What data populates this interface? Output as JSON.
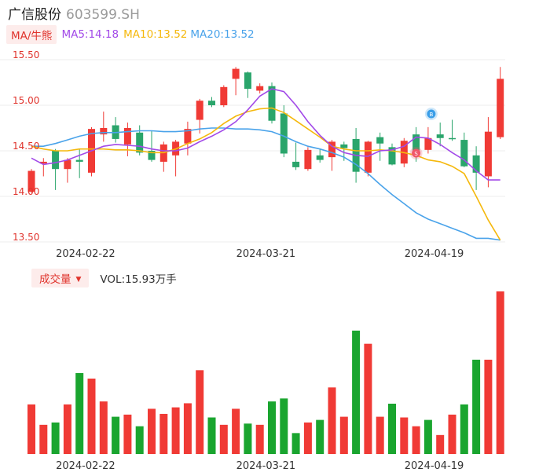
{
  "header": {
    "name": "广信股份",
    "code": "603599.SH"
  },
  "legend": {
    "indicator": "MA/牛熊",
    "ma5": "MA5:14.18",
    "ma10": "MA10:13.52",
    "ma20": "MA20:13.52"
  },
  "volume_legend": {
    "label": "成交量",
    "caret": "▼",
    "vol": "VOL:15.93万手"
  },
  "markers": [
    {
      "type": "buy",
      "text": "B",
      "index": 33
    },
    {
      "type": "sell",
      "text": "S",
      "index": 32
    }
  ],
  "colors": {
    "up": "#f03a35",
    "down": "#2aa56b",
    "vol_down": "#1aa52f",
    "ma5": "#a249e8",
    "ma10": "#f5b80c",
    "ma20": "#4aa3ea"
  },
  "chart_data": [
    {
      "type": "candlestick",
      "ylim": [
        13.5,
        15.55
      ],
      "y_ticks": [
        "15.50",
        "15.00",
        "14.50",
        "14.00",
        "13.50"
      ],
      "x_ticks": [
        {
          "index": 4,
          "label": "2024-02-22"
        },
        {
          "index": 19,
          "label": "2024-03-21"
        },
        {
          "index": 33,
          "label": "2024-04-19"
        }
      ],
      "ohlc": [
        [
          14.05,
          14.28,
          14.04,
          14.3
        ],
        [
          14.36,
          14.38,
          14.22,
          14.42
        ],
        [
          14.5,
          14.3,
          14.07,
          14.52
        ],
        [
          14.3,
          14.4,
          14.15,
          14.42
        ],
        [
          14.4,
          14.38,
          14.2,
          14.52
        ],
        [
          14.26,
          14.74,
          14.22,
          14.76
        ],
        [
          14.68,
          14.75,
          14.6,
          14.93
        ],
        [
          14.78,
          14.63,
          14.59,
          14.87
        ],
        [
          14.57,
          14.75,
          14.44,
          14.81
        ],
        [
          14.7,
          14.48,
          14.45,
          14.78
        ],
        [
          14.5,
          14.4,
          14.38,
          14.72
        ],
        [
          14.38,
          14.57,
          14.27,
          14.6
        ],
        [
          14.45,
          14.6,
          14.22,
          14.62
        ],
        [
          14.58,
          14.74,
          14.45,
          14.82
        ],
        [
          14.84,
          15.05,
          14.69,
          15.07
        ],
        [
          15.05,
          15.0,
          14.98,
          15.09
        ],
        [
          15.0,
          15.2,
          14.98,
          15.22
        ],
        [
          15.29,
          15.4,
          15.11,
          15.42
        ],
        [
          15.36,
          15.18,
          15.08,
          15.37
        ],
        [
          15.16,
          15.21,
          15.13,
          15.24
        ],
        [
          15.21,
          14.83,
          14.8,
          15.25
        ],
        [
          14.91,
          14.47,
          14.43,
          15.0
        ],
        [
          14.38,
          14.32,
          14.29,
          14.59
        ],
        [
          14.3,
          14.51,
          14.28,
          14.54
        ],
        [
          14.45,
          14.4,
          14.37,
          14.52
        ],
        [
          14.43,
          14.6,
          14.28,
          14.62
        ],
        [
          14.57,
          14.53,
          14.39,
          14.6
        ],
        [
          14.63,
          14.27,
          14.15,
          14.75
        ],
        [
          14.26,
          14.6,
          14.22,
          14.61
        ],
        [
          14.65,
          14.58,
          14.39,
          14.7
        ],
        [
          14.54,
          14.35,
          14.34,
          14.58
        ],
        [
          14.36,
          14.61,
          14.32,
          14.64
        ],
        [
          14.68,
          14.48,
          14.38,
          14.76
        ],
        [
          14.51,
          14.64,
          14.47,
          14.76
        ],
        [
          14.68,
          14.64,
          14.55,
          14.81
        ],
        [
          14.64,
          14.63,
          14.61,
          14.84
        ],
        [
          14.62,
          14.33,
          14.32,
          14.7
        ],
        [
          14.45,
          14.26,
          14.07,
          14.55
        ],
        [
          14.22,
          14.71,
          14.1,
          14.87
        ],
        [
          14.65,
          15.29,
          14.63,
          15.42
        ]
      ],
      "ma5": [
        14.42,
        14.35,
        14.37,
        14.4,
        14.45,
        14.5,
        14.55,
        14.57,
        14.56,
        14.55,
        14.52,
        14.5,
        14.5,
        14.53,
        14.6,
        14.66,
        14.73,
        14.82,
        14.95,
        15.1,
        15.18,
        15.15,
        15.0,
        14.82,
        14.67,
        14.55,
        14.48,
        14.45,
        14.44,
        14.5,
        14.51,
        14.55,
        14.65,
        14.64,
        14.57,
        14.48,
        14.4,
        14.28,
        14.18,
        14.18
      ],
      "ma10": [
        14.55,
        14.52,
        14.5,
        14.5,
        14.52,
        14.52,
        14.52,
        14.51,
        14.51,
        14.5,
        14.48,
        14.48,
        14.52,
        14.58,
        14.63,
        14.7,
        14.8,
        14.88,
        14.93,
        14.96,
        14.97,
        14.92,
        14.83,
        14.74,
        14.65,
        14.55,
        14.52,
        14.5,
        14.5,
        14.51,
        14.5,
        14.48,
        14.45,
        14.4,
        14.38,
        14.33,
        14.25,
        14.0,
        13.74,
        13.52
      ],
      "ma20": [
        14.55,
        14.55,
        14.58,
        14.62,
        14.66,
        14.69,
        14.7,
        14.7,
        14.71,
        14.72,
        14.72,
        14.71,
        14.71,
        14.72,
        14.74,
        14.75,
        14.75,
        14.74,
        14.74,
        14.73,
        14.71,
        14.66,
        14.6,
        14.55,
        14.52,
        14.48,
        14.43,
        14.35,
        14.25,
        14.13,
        14.02,
        13.92,
        13.82,
        13.75,
        13.7,
        13.65,
        13.6,
        13.54,
        13.54,
        13.52
      ]
    },
    {
      "type": "bar",
      "name": "成交量",
      "unit": "万手",
      "ylim": [
        0,
        15.93
      ],
      "values": [
        4.86,
        2.86,
        3.09,
        4.86,
        7.93,
        7.39,
        5.15,
        3.65,
        3.86,
        2.72,
        4.43,
        3.93,
        4.57,
        4.97,
        8.21,
        3.58,
        2.86,
        4.43,
        2.98,
        2.86,
        5.15,
        5.44,
        2.05,
        3.09,
        3.34,
        6.52,
        3.65,
        12.09,
        10.8,
        3.65,
        4.93,
        3.58,
        2.72,
        3.34,
        1.86,
        3.86,
        4.86,
        9.24,
        9.24,
        15.93
      ],
      "up": [
        true,
        true,
        false,
        true,
        false,
        true,
        true,
        false,
        true,
        false,
        true,
        true,
        true,
        true,
        true,
        false,
        true,
        true,
        false,
        true,
        false,
        false,
        false,
        true,
        false,
        true,
        true,
        false,
        true,
        true,
        false,
        true,
        true,
        false,
        true,
        true,
        false,
        false,
        true,
        true
      ]
    }
  ]
}
